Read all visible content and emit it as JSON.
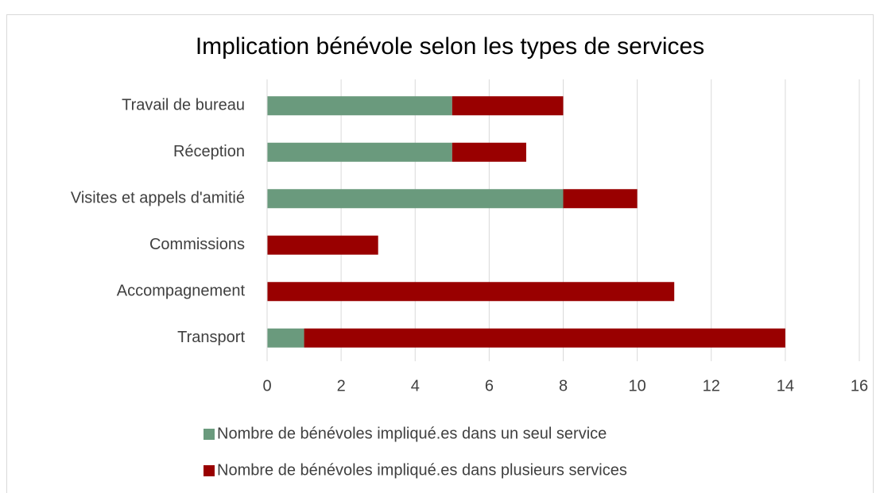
{
  "chart_data": {
    "type": "bar",
    "orientation": "horizontal",
    "stacked": true,
    "title": "Implication bénévole selon les types de services",
    "categories": [
      "Travail de bureau",
      "Réception",
      "Visites et appels d'amitié",
      "Commissions",
      "Accompagnement",
      "Transport"
    ],
    "series": [
      {
        "name": "Nombre de bénévoles impliqué.es dans un seul service",
        "color": "#6a9a7d",
        "values": [
          5,
          5,
          8,
          0,
          0,
          1
        ]
      },
      {
        "name": "Nombre de bénévoles impliqué.es dans plusieurs services",
        "color": "#990000",
        "values": [
          3,
          2,
          2,
          3,
          11,
          13
        ]
      }
    ],
    "xlim": [
      0,
      16
    ],
    "xticks": [
      0,
      2,
      4,
      6,
      8,
      10,
      12,
      14,
      16
    ],
    "grid": true,
    "legend": "bottom"
  }
}
